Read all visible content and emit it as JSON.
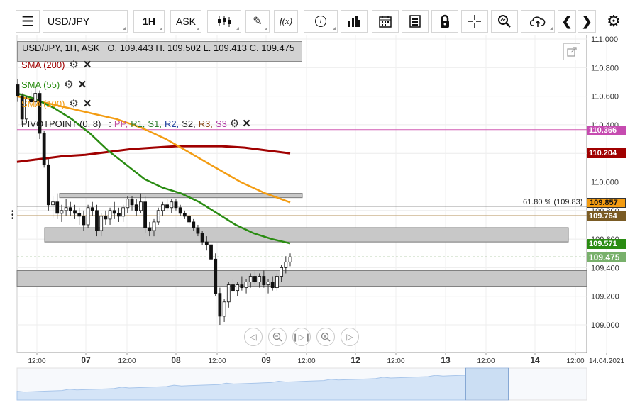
{
  "toolbar": {
    "symbol": "USD/JPY",
    "timeframe": "1H",
    "price_type": "ASK",
    "fx_label": "f(x)"
  },
  "legend": {
    "ohlc_text": "USD/JPY, 1H, ASK   O. 109.443 H. 109.502 L. 109.413 C. 109.475",
    "sma200": "SMA (200)",
    "sma55": "SMA (55)",
    "sma100": "SMA (100)",
    "pivot_prefix": "PIVOTPOINT (0, 8)   :",
    "pivot_items": [
      "PP,",
      "R1,",
      "S1,",
      "R2,",
      "S2,",
      "R3,",
      "S3"
    ]
  },
  "colors": {
    "sma200": "#a00000",
    "sma55": "#2a8c12",
    "sma100": "#f39c12",
    "pivot_line": "#d05bb4",
    "pp": "#c0509e",
    "r1": "#2e7d2e",
    "s1": "#2e7d2e",
    "r2": "#2645a0",
    "s2": "#333333",
    "r3": "#8a4a1a",
    "s3": "#b03aa5",
    "last_price": "#78b06b",
    "sma55_tag": "#2a8c12",
    "sma200_tag": "#a00000",
    "sma100_tag": "#f39c12",
    "fib_tag": "#7a5b24"
  },
  "fib_label": "61.80 % (109.83)",
  "price_tags": [
    {
      "id": "pivot",
      "text": "110.366",
      "value": 110.366,
      "color": "#c64bb0"
    },
    {
      "id": "sma200",
      "text": "110.204",
      "value": 110.204,
      "color": "#a00000"
    },
    {
      "id": "sma100",
      "text": "109.857",
      "value": 109.857,
      "color": "#f39c12"
    },
    {
      "id": "fib",
      "text": "109.764",
      "value": 109.764,
      "color": "#7a5b24"
    },
    {
      "id": "sma55",
      "text": "109.571",
      "value": 109.571,
      "color": "#2a8c12"
    },
    {
      "id": "last",
      "text": "109.475",
      "value": 109.475,
      "color": "#78b06b"
    }
  ],
  "chart_data": {
    "type": "candlestick",
    "symbol": "USD/JPY",
    "timeframe": "1H",
    "y_ticks": [
      "111.000",
      "110.800",
      "110.600",
      "110.400",
      "110.200",
      "110.000",
      "109.800",
      "109.600",
      "109.400",
      "109.200",
      "109.000"
    ],
    "y_tick_values": [
      111.0,
      110.8,
      110.6,
      110.4,
      110.2,
      110.0,
      109.8,
      109.6,
      109.4,
      109.2,
      109.0
    ],
    "ylim": [
      108.9,
      111.05
    ],
    "x_labels": [
      "12:00",
      "07",
      "12:00",
      "08",
      "12:00",
      "09",
      "12:00",
      "12",
      "12:00",
      "13",
      "12:00",
      "14",
      "12:00",
      "14.04.2021"
    ],
    "x_label_bold": [
      false,
      true,
      false,
      true,
      false,
      true,
      false,
      true,
      false,
      true,
      false,
      true,
      false,
      false
    ],
    "candles": [
      [
        110.68,
        110.72,
        110.56,
        110.6
      ],
      [
        110.6,
        110.62,
        110.4,
        110.44
      ],
      [
        110.44,
        110.6,
        110.42,
        110.58
      ],
      [
        110.58,
        110.64,
        110.52,
        110.56
      ],
      [
        110.56,
        110.66,
        110.54,
        110.62
      ],
      [
        110.62,
        110.64,
        110.3,
        110.34
      ],
      [
        110.34,
        110.36,
        110.1,
        110.12
      ],
      [
        110.12,
        110.16,
        109.8,
        109.84
      ],
      [
        109.84,
        109.9,
        109.75,
        109.86
      ],
      [
        109.86,
        109.92,
        109.74,
        109.78
      ],
      [
        109.78,
        109.84,
        109.72,
        109.8
      ],
      [
        109.8,
        109.88,
        109.76,
        109.82
      ],
      [
        109.82,
        109.86,
        109.76,
        109.8
      ],
      [
        109.8,
        109.84,
        109.74,
        109.78
      ],
      [
        109.78,
        109.82,
        109.7,
        109.76
      ],
      [
        109.76,
        109.8,
        109.66,
        109.7
      ],
      [
        109.7,
        109.84,
        109.68,
        109.82
      ],
      [
        109.82,
        109.86,
        109.76,
        109.8
      ],
      [
        109.8,
        109.84,
        109.62,
        109.66
      ],
      [
        109.66,
        109.78,
        109.62,
        109.76
      ],
      [
        109.76,
        109.8,
        109.7,
        109.74
      ],
      [
        109.74,
        109.82,
        109.7,
        109.8
      ],
      [
        109.8,
        109.86,
        109.74,
        109.78
      ],
      [
        109.78,
        109.82,
        109.72,
        109.76
      ],
      [
        109.76,
        109.84,
        109.72,
        109.82
      ],
      [
        109.82,
        109.9,
        109.78,
        109.88
      ],
      [
        109.88,
        109.9,
        109.8,
        109.84
      ],
      [
        109.84,
        109.88,
        109.76,
        109.8
      ],
      [
        109.8,
        109.92,
        109.78,
        109.86
      ],
      [
        109.86,
        109.9,
        109.64,
        109.68
      ],
      [
        109.68,
        109.72,
        109.62,
        109.66
      ],
      [
        109.66,
        109.74,
        109.62,
        109.72
      ],
      [
        109.72,
        109.82,
        109.7,
        109.8
      ],
      [
        109.8,
        109.86,
        109.76,
        109.84
      ],
      [
        109.84,
        109.88,
        109.8,
        109.82
      ],
      [
        109.82,
        109.88,
        109.78,
        109.86
      ],
      [
        109.86,
        109.88,
        109.8,
        109.82
      ],
      [
        109.82,
        109.84,
        109.76,
        109.78
      ],
      [
        109.78,
        109.8,
        109.74,
        109.76
      ],
      [
        109.76,
        109.78,
        109.7,
        109.72
      ],
      [
        109.72,
        109.74,
        109.66,
        109.68
      ],
      [
        109.68,
        109.7,
        109.62,
        109.64
      ],
      [
        109.64,
        109.66,
        109.56,
        109.58
      ],
      [
        109.58,
        109.62,
        109.52,
        109.56
      ],
      [
        109.56,
        109.58,
        109.44,
        109.46
      ],
      [
        109.46,
        109.5,
        109.2,
        109.22
      ],
      [
        109.22,
        109.26,
        109.0,
        109.06
      ],
      [
        109.06,
        109.18,
        109.02,
        109.16
      ],
      [
        109.16,
        109.3,
        109.12,
        109.28
      ],
      [
        109.28,
        109.32,
        109.22,
        109.24
      ],
      [
        109.24,
        109.3,
        109.2,
        109.28
      ],
      [
        109.28,
        109.34,
        109.24,
        109.26
      ],
      [
        109.26,
        109.32,
        109.22,
        109.3
      ],
      [
        109.3,
        109.36,
        109.26,
        109.34
      ],
      [
        109.34,
        109.38,
        109.28,
        109.3
      ],
      [
        109.3,
        109.36,
        109.26,
        109.34
      ],
      [
        109.34,
        109.38,
        109.26,
        109.28
      ],
      [
        109.28,
        109.32,
        109.22,
        109.3
      ],
      [
        109.3,
        109.34,
        109.24,
        109.26
      ],
      [
        109.26,
        109.36,
        109.24,
        109.34
      ],
      [
        109.34,
        109.42,
        109.3,
        109.4
      ],
      [
        109.4,
        109.48,
        109.36,
        109.44
      ],
      [
        109.44,
        109.5,
        109.41,
        109.475
      ]
    ],
    "sma200": [
      110.14,
      110.16,
      110.18,
      110.19,
      110.21,
      110.23,
      110.24,
      110.25,
      110.25,
      110.25,
      110.24,
      110.22,
      110.2
    ],
    "sma55": [
      110.62,
      110.58,
      110.52,
      110.44,
      110.34,
      110.22,
      110.12,
      110.02,
      109.96,
      109.92,
      109.86,
      109.78,
      109.7,
      109.64,
      109.6,
      109.57
    ],
    "sma100": [
      110.6,
      110.56,
      110.52,
      110.48,
      110.44,
      110.38,
      110.3,
      110.2,
      110.1,
      110.0,
      109.92,
      109.857
    ],
    "pivot_level": 110.366,
    "fib_level": 109.83,
    "fib_level_2": 109.764,
    "last_price": 109.475,
    "zones": [
      {
        "from": 109.89,
        "to": 109.92
      },
      {
        "from": 109.58,
        "to": 109.68
      },
      {
        "from": 109.27,
        "to": 109.38
      }
    ]
  }
}
